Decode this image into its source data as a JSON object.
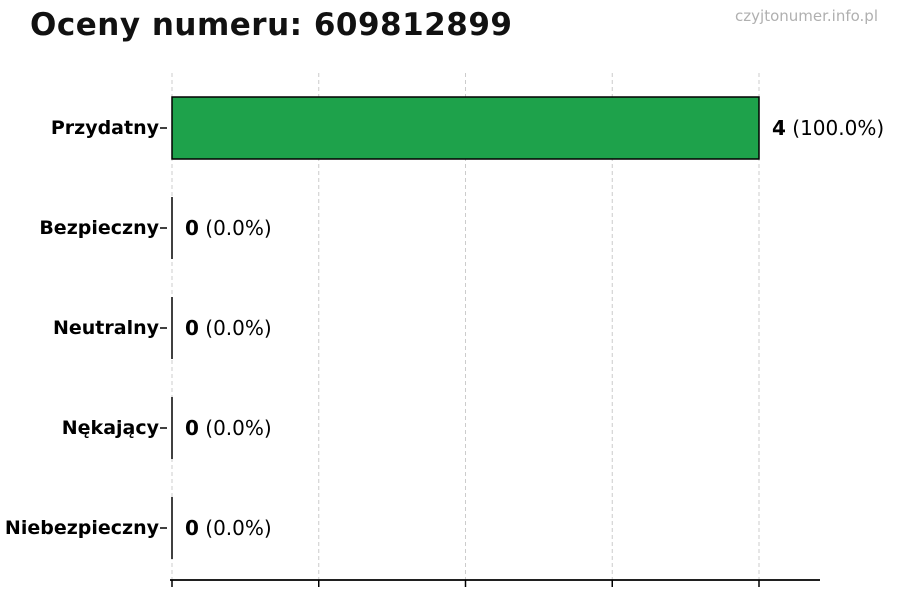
{
  "header": {
    "title": "Oceny numeru: 609812899",
    "watermark": "czyjtonumer.info.pl"
  },
  "chart_data": {
    "type": "bar",
    "orientation": "horizontal",
    "title": "Oceny numeru: 609812899",
    "categories": [
      "Przydatny",
      "Bezpieczny",
      "Neutralny",
      "Nękający",
      "Niebezpieczny"
    ],
    "values": [
      4,
      0,
      0,
      0,
      0
    ],
    "value_labels": [
      {
        "count": "4",
        "pct": "(100.0%)"
      },
      {
        "count": "0",
        "pct": "(0.0%)"
      },
      {
        "count": "0",
        "pct": "(0.0%)"
      },
      {
        "count": "0",
        "pct": "(0.0%)"
      },
      {
        "count": "0",
        "pct": "(0.0%)"
      }
    ],
    "xlabel": "",
    "ylabel": "",
    "xlim": [
      0,
      4.42
    ],
    "x_ticks": [
      0,
      1,
      2,
      3,
      4
    ],
    "x_tick_labels_visible": false,
    "grid": true,
    "grid_style": "dashed",
    "legend": false,
    "colors": {
      "bar_fill": "#1ea24b",
      "bar_edge": "#000000",
      "grid": "#cccccc",
      "axis": "#000000",
      "label": "#000000",
      "title": "#111111",
      "watermark": "#b0b0b0"
    }
  }
}
